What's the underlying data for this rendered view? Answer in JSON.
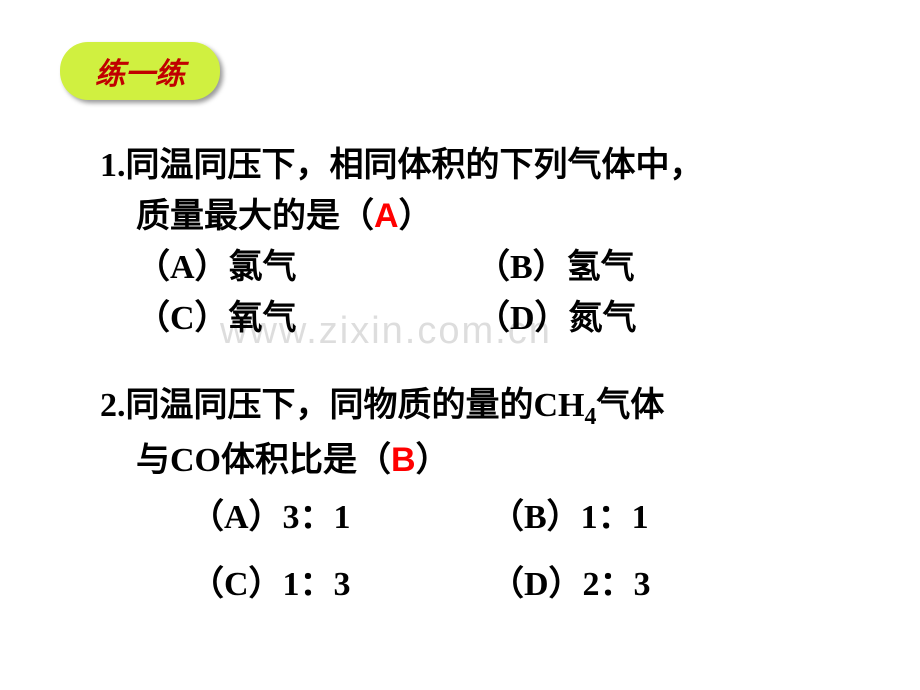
{
  "badge": {
    "label": "练一练"
  },
  "watermark": "www.zixin.com.cn",
  "q1": {
    "line1": "1.同温同压下，相同体积的下列气体中，",
    "line2_prefix": "质量最大的是（",
    "answer": "A",
    "line2_suffix": "）",
    "opt_a": "（A）氯气",
    "opt_b": "（B）氢气",
    "opt_c": "（C）氧气",
    "opt_d": "（D）氮气"
  },
  "q2": {
    "line1_pre": "2.同温同压下，同物质的量的CH",
    "sub": "4",
    "line1_post": "气体",
    "line2_prefix": "与CO体积比是（",
    "answer": "B",
    "line2_suffix": "）",
    "opt_a": "（A）3：1",
    "opt_b": "（B）1：1",
    "opt_c": "（C）1：3",
    "opt_d": "（D）2：3"
  }
}
